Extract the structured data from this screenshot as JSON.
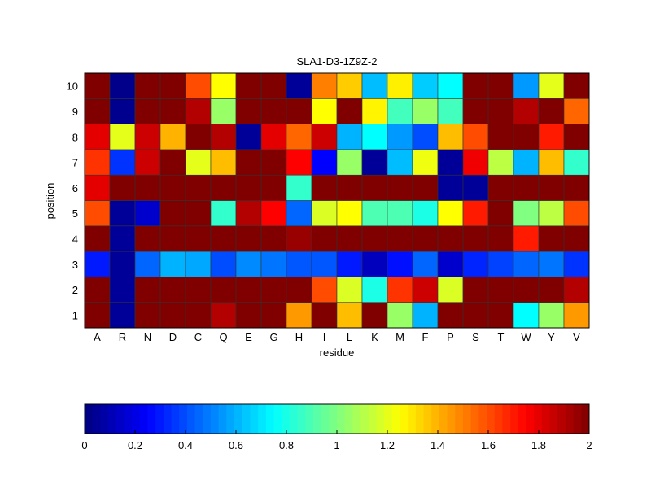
{
  "chart_data": {
    "type": "heatmap",
    "title": "SLA1-D3-1Z9Z-2",
    "xlabel": "residue",
    "ylabel": "position",
    "x_categories": [
      "A",
      "R",
      "N",
      "D",
      "C",
      "Q",
      "E",
      "G",
      "H",
      "I",
      "L",
      "K",
      "M",
      "F",
      "P",
      "S",
      "T",
      "W",
      "Y",
      "V"
    ],
    "y_categories": [
      "1",
      "2",
      "3",
      "4",
      "5",
      "6",
      "7",
      "8",
      "9",
      "10"
    ],
    "colormap": "jet",
    "clim": [
      0,
      2
    ],
    "colorbar_ticks": [
      "0",
      "0.2",
      "0.4",
      "0.6",
      "0.8",
      "1",
      "1.2",
      "1.4",
      "1.6",
      "1.8",
      "2"
    ],
    "colorbar_location": "bottom",
    "values_by_position": {
      "10": [
        2,
        0.02,
        2,
        2,
        1.6,
        1.25,
        2,
        2,
        0.05,
        1.5,
        1.35,
        0.62,
        1.28,
        0.65,
        0.75,
        2,
        2,
        0.55,
        1.2,
        2
      ],
      "9": [
        2,
        0.03,
        2,
        2,
        1.9,
        1.05,
        2,
        2,
        2,
        1.25,
        2,
        1.27,
        0.88,
        1.05,
        0.88,
        2,
        2,
        1.9,
        2,
        1.55
      ],
      "8": [
        1.8,
        1.2,
        1.85,
        1.4,
        2,
        1.9,
        0.05,
        1.8,
        1.55,
        1.85,
        0.6,
        0.75,
        0.55,
        0.4,
        1.38,
        1.6,
        2,
        2,
        1.7,
        2
      ],
      "7": [
        1.65,
        0.35,
        1.85,
        2,
        1.2,
        1.38,
        2,
        2,
        1.75,
        0.25,
        1.05,
        0.05,
        0.62,
        1.22,
        0.05,
        1.78,
        1.12,
        0.6,
        1.38,
        0.85
      ],
      "6": [
        1.8,
        2,
        2,
        2,
        2,
        2,
        2,
        2,
        0.85,
        2,
        2,
        2,
        2,
        2,
        0.05,
        0.05,
        2,
        2,
        2,
        2
      ],
      "5": [
        1.6,
        0.05,
        0.15,
        2,
        2,
        0.85,
        1.9,
        1.75,
        0.45,
        1.18,
        1.25,
        0.9,
        0.9,
        0.8,
        1.25,
        1.7,
        2,
        1.0,
        1.12,
        1.6
      ],
      "4": [
        2,
        0.05,
        2,
        2,
        2,
        2,
        2,
        2,
        1.95,
        2,
        2,
        2,
        2,
        2,
        2,
        2,
        2,
        1.7,
        2,
        2
      ],
      "3": [
        0.3,
        0.05,
        0.45,
        0.6,
        0.58,
        0.4,
        0.52,
        0.48,
        0.42,
        0.42,
        0.3,
        0.12,
        0.28,
        0.45,
        0.15,
        0.32,
        0.38,
        0.45,
        0.48,
        0.35
      ],
      "2": [
        2,
        0.05,
        2,
        2,
        2,
        2,
        2,
        2,
        2,
        1.6,
        1.18,
        0.8,
        1.65,
        1.85,
        1.18,
        2,
        2,
        2,
        2,
        1.9
      ],
      "1": [
        2,
        0.05,
        2,
        2,
        2,
        1.9,
        2,
        2,
        1.45,
        2,
        1.38,
        2,
        1.05,
        0.6,
        2,
        2,
        2,
        0.75,
        1.05,
        1.45
      ]
    }
  }
}
